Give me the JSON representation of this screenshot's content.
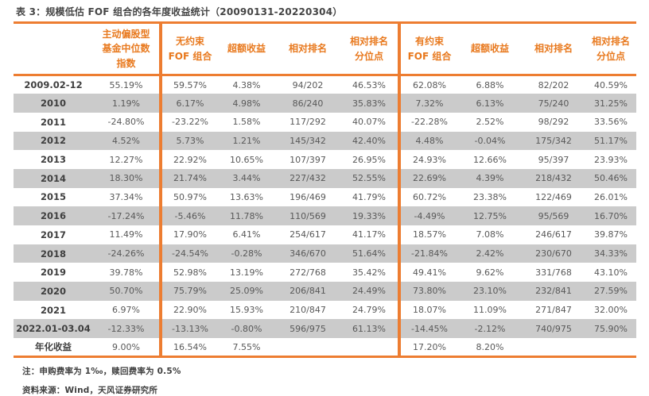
{
  "title": "表 3：规模低估 FOF 组合的各年度收益统计（20090131-20220304）",
  "colors": {
    "accent_orange": "#ED7D31",
    "header_text_orange": "#E8791E",
    "stripe_gray": "#CBCBCB",
    "body_text": "#595959",
    "label_text": "#3F3F3F"
  },
  "table": {
    "headers": [
      "",
      "主动偏股型\n基金中位数\n指数",
      "无约束\nFOF 组合",
      "超额收益",
      "相对排名",
      "相对排名\n分位点",
      "有约束\nFOF 组合",
      "超额收益",
      "相对排名",
      "相对排名\n分位点"
    ],
    "rows": [
      [
        "2009.02-12",
        "55.19%",
        "59.57%",
        "4.38%",
        "94/202",
        "46.53%",
        "62.08%",
        "6.88%",
        "82/202",
        "40.59%"
      ],
      [
        "2010",
        "1.19%",
        "6.17%",
        "4.98%",
        "86/240",
        "35.83%",
        "7.32%",
        "6.13%",
        "75/240",
        "31.25%"
      ],
      [
        "2011",
        "-24.80%",
        "-23.22%",
        "1.58%",
        "117/292",
        "40.07%",
        "-22.28%",
        "2.52%",
        "98/292",
        "33.56%"
      ],
      [
        "2012",
        "4.52%",
        "5.73%",
        "1.21%",
        "145/342",
        "42.40%",
        "4.48%",
        "-0.04%",
        "175/342",
        "51.17%"
      ],
      [
        "2013",
        "12.27%",
        "22.92%",
        "10.65%",
        "107/397",
        "26.95%",
        "24.93%",
        "12.66%",
        "95/397",
        "23.93%"
      ],
      [
        "2014",
        "18.30%",
        "21.74%",
        "3.44%",
        "227/432",
        "52.55%",
        "22.69%",
        "4.39%",
        "218/432",
        "50.46%"
      ],
      [
        "2015",
        "37.34%",
        "50.97%",
        "13.63%",
        "196/469",
        "41.79%",
        "60.72%",
        "23.38%",
        "122/469",
        "26.01%"
      ],
      [
        "2016",
        "-17.24%",
        "-5.46%",
        "11.78%",
        "110/569",
        "19.33%",
        "-4.49%",
        "12.75%",
        "95/569",
        "16.70%"
      ],
      [
        "2017",
        "11.49%",
        "17.90%",
        "6.41%",
        "254/617",
        "41.17%",
        "18.57%",
        "7.08%",
        "246/617",
        "39.87%"
      ],
      [
        "2018",
        "-24.26%",
        "-24.54%",
        "-0.28%",
        "346/670",
        "51.64%",
        "-21.84%",
        "2.42%",
        "230/670",
        "34.33%"
      ],
      [
        "2019",
        "39.78%",
        "52.98%",
        "13.19%",
        "272/768",
        "35.42%",
        "49.41%",
        "9.62%",
        "331/768",
        "43.10%"
      ],
      [
        "2020",
        "50.70%",
        "75.79%",
        "25.09%",
        "206/841",
        "24.49%",
        "73.80%",
        "23.10%",
        "232/841",
        "27.59%"
      ],
      [
        "2021",
        "6.97%",
        "22.90%",
        "15.93%",
        "210/847",
        "24.79%",
        "18.07%",
        "11.09%",
        "271/847",
        "32.00%"
      ],
      [
        "2022.01-03.04",
        "-12.33%",
        "-13.13%",
        "-0.80%",
        "596/975",
        "61.13%",
        "-14.45%",
        "-2.12%",
        "740/975",
        "75.90%"
      ],
      [
        "年化收益",
        "9.00%",
        "16.54%",
        "7.55%",
        "",
        "",
        "17.20%",
        "8.20%",
        "",
        ""
      ]
    ]
  },
  "notes": {
    "fee_note": "注：申购费率为 1‰，赎回费率为 0.5%",
    "source": "资料来源：Wind，天风证券研究所"
  }
}
